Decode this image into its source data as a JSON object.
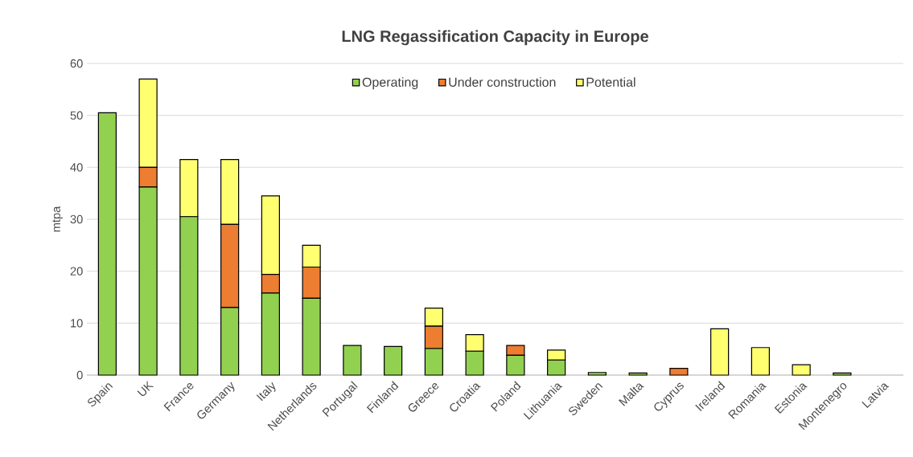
{
  "chart_data": {
    "type": "bar",
    "stacked": true,
    "title": "LNG Regassification Capacity in Europe",
    "ylabel": "mtpa",
    "categories": [
      "Spain",
      "UK",
      "France",
      "Germany",
      "Italy",
      "Netherlands",
      "Portugal",
      "Finland",
      "Greece",
      "Croatia",
      "Poland",
      "Lithuania",
      "Sweden",
      "Malta",
      "Cyprus",
      "Ireland",
      "Romania",
      "Estonia",
      "Montenegro",
      "Latvia"
    ],
    "series": [
      {
        "name": "Operating",
        "color": "#92d050",
        "values": [
          50.5,
          36.2,
          30.5,
          13,
          15.8,
          14.8,
          5.7,
          5.5,
          5.1,
          4.6,
          3.8,
          2.9,
          0.5,
          0.4,
          null,
          null,
          null,
          null,
          0.4,
          null
        ]
      },
      {
        "name": "Under construction",
        "color": "#ed7d31",
        "values": [
          null,
          3.8,
          null,
          16,
          3.6,
          6,
          null,
          null,
          4.3,
          null,
          1.9,
          null,
          null,
          null,
          1.3,
          null,
          null,
          null,
          null,
          null
        ]
      },
      {
        "name": "Potential",
        "color": "#ffff70",
        "values": [
          null,
          17,
          11,
          12.5,
          15.1,
          4.2,
          null,
          null,
          3.5,
          3.2,
          null,
          1.9,
          null,
          null,
          null,
          8.9,
          5.3,
          2,
          null,
          null
        ]
      }
    ],
    "ylim": [
      0,
      60
    ],
    "yticks": [
      0,
      10,
      20,
      30,
      40,
      50,
      60
    ],
    "grid": "y",
    "legend": "top"
  }
}
